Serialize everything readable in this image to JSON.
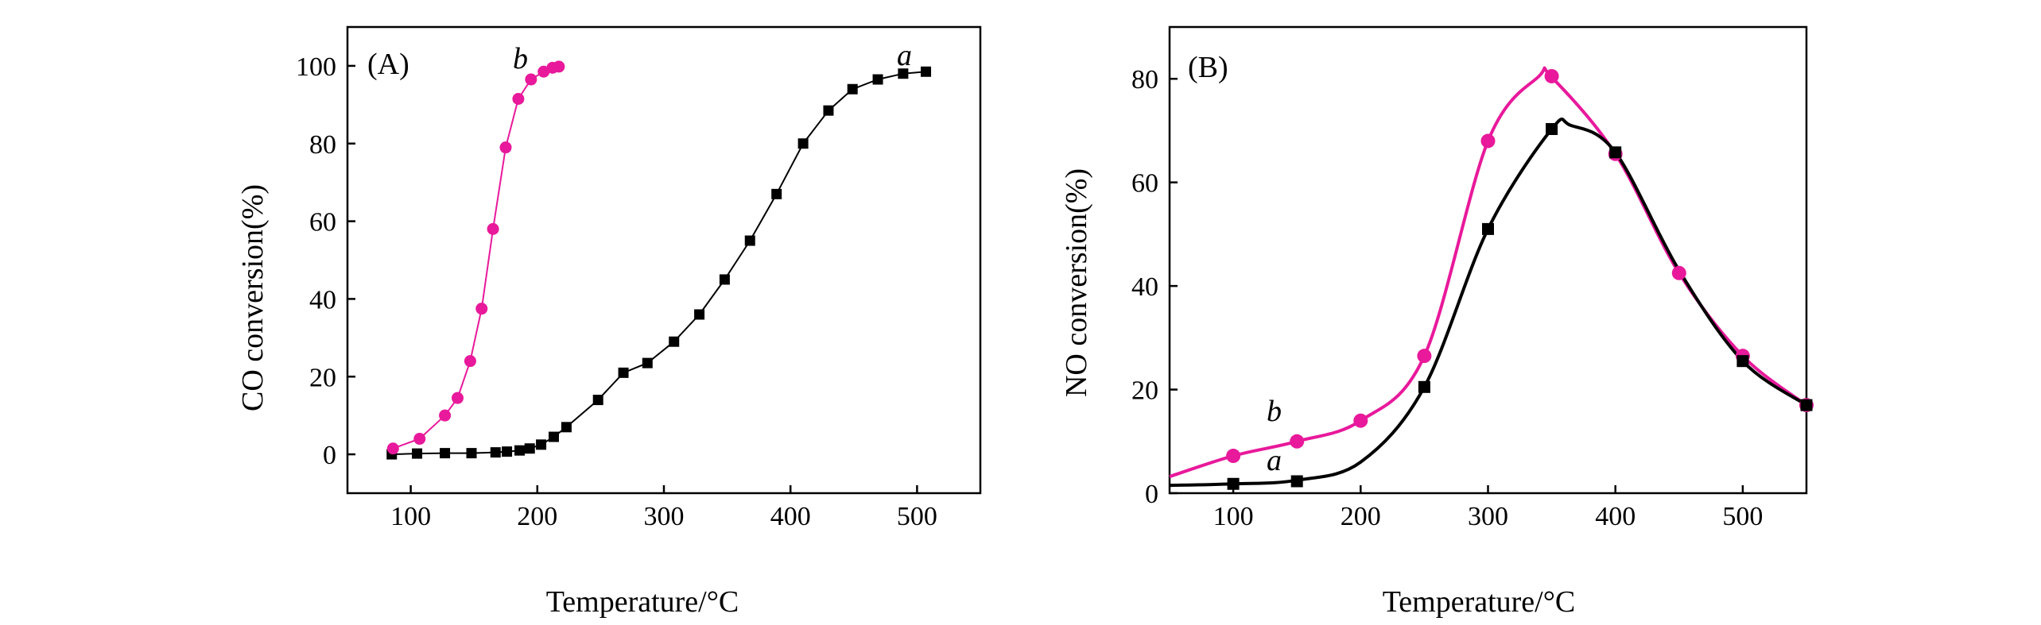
{
  "colors": {
    "series_a": "#000000",
    "series_b": "#e8199b"
  },
  "chart_data": [
    {
      "type": "line",
      "panel_label": "(A)",
      "xlabel": "Temperature/°C",
      "ylabel": "CO conversion(%)",
      "xlim": [
        50,
        550
      ],
      "ylim": [
        -10,
        110
      ],
      "xticks": [
        100,
        200,
        300,
        400,
        500
      ],
      "yticks": [
        0,
        20,
        40,
        60,
        80,
        100
      ],
      "grid": false,
      "series": [
        {
          "name": "a",
          "marker": "square",
          "x": [
            85,
            105,
            127,
            148,
            167,
            176,
            186,
            194,
            203,
            213,
            223,
            248,
            268,
            287,
            308,
            328,
            348,
            368,
            389,
            410,
            430,
            449,
            469,
            489,
            507
          ],
          "y": [
            0,
            0.2,
            0.3,
            0.3,
            0.5,
            0.7,
            1,
            1.5,
            2.5,
            4.5,
            7,
            14,
            21,
            23.5,
            29,
            36,
            45,
            55,
            67,
            80,
            88.5,
            94,
            96.5,
            98,
            98.5
          ]
        },
        {
          "name": "b",
          "marker": "circle",
          "x": [
            86,
            107,
            127,
            137,
            147,
            156,
            165,
            175,
            185,
            195,
            205,
            212,
            217
          ],
          "y": [
            1.5,
            4,
            10,
            14.5,
            24,
            37.5,
            58,
            79,
            91.5,
            96.5,
            98.5,
            99.5,
            99.8
          ]
        }
      ]
    },
    {
      "type": "line",
      "panel_label": "(B)",
      "xlabel": "Temperature/°C",
      "ylabel": "NO conversion(%)",
      "xlim": [
        50,
        550
      ],
      "ylim": [
        0,
        90
      ],
      "xticks": [
        100,
        200,
        300,
        400,
        500
      ],
      "yticks": [
        0,
        20,
        40,
        60,
        80
      ],
      "grid": false,
      "series": [
        {
          "name": "a",
          "marker": "square",
          "x": [
            100,
            150,
            250,
            300,
            350,
            400,
            500,
            550
          ],
          "y": [
            1.8,
            2.3,
            20.5,
            51,
            70.3,
            65.8,
            25.5,
            17
          ],
          "curve_x": [
            50,
            100,
            150,
            200,
            250,
            300,
            350,
            365,
            400,
            450,
            500,
            550
          ],
          "curve_y": [
            1.5,
            1.8,
            2.5,
            6,
            20.5,
            51,
            70.3,
            71,
            65.8,
            43,
            25.5,
            17
          ]
        },
        {
          "name": "b",
          "marker": "circle",
          "x": [
            100,
            150,
            200,
            250,
            300,
            350,
            400,
            450,
            500,
            550
          ],
          "y": [
            7.2,
            10,
            14,
            26.5,
            68,
            80.5,
            65.5,
            42.5,
            26.5,
            17
          ],
          "curve_x": [
            50,
            100,
            150,
            200,
            250,
            300,
            340,
            350,
            400,
            450,
            500,
            550
          ],
          "curve_y": [
            3.2,
            7.2,
            10,
            14,
            26.5,
            68,
            80.5,
            80.3,
            65.5,
            42.5,
            26.5,
            17
          ]
        }
      ]
    }
  ]
}
